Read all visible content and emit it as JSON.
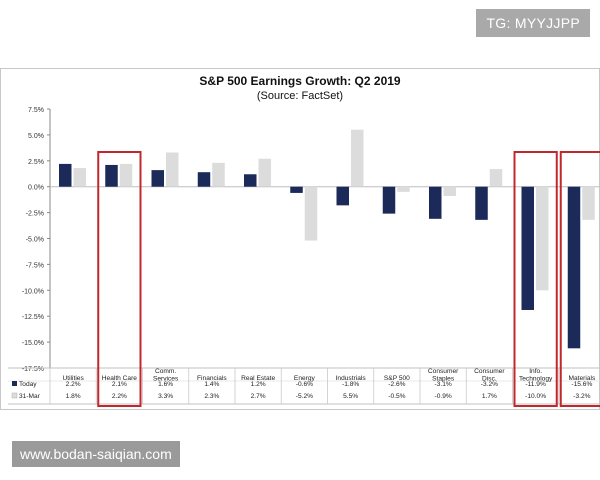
{
  "watermark_top": "TG: MYYJJPP",
  "watermark_bottom": "www.bodan-saiqian.com",
  "chart_data": {
    "type": "bar",
    "title": "S&P 500 Earnings Growth: Q2 2019",
    "subtitle": "(Source: FactSet)",
    "categories": [
      "Utilities",
      "Health Care",
      "Comm. Services",
      "Financials",
      "Real Estate",
      "Energy",
      "Industrials",
      "S&P 500",
      "Consumer Staples",
      "Consumer Disc.",
      "Info. Technology",
      "Materials"
    ],
    "category_lines": [
      [
        "Utilities"
      ],
      [
        "Health Care"
      ],
      [
        "Comm.",
        "Services"
      ],
      [
        "Financials"
      ],
      [
        "Real Estate"
      ],
      [
        "Energy"
      ],
      [
        "Industrials"
      ],
      [
        "S&P 500"
      ],
      [
        "Consumer",
        "Staples"
      ],
      [
        "Consumer",
        "Disc."
      ],
      [
        "Info.",
        "Technology"
      ],
      [
        "Materials"
      ]
    ],
    "series": [
      {
        "name": "Today",
        "color": "#1c2a5a",
        "values": [
          2.2,
          2.1,
          1.6,
          1.4,
          1.2,
          -0.6,
          -1.8,
          -2.6,
          -3.1,
          -3.2,
          -11.9,
          -15.6
        ],
        "labels": [
          "2.2%",
          "2.1%",
          "1.6%",
          "1.4%",
          "1.2%",
          "-0.6%",
          "-1.8%",
          "-2.6%",
          "-3.1%",
          "-3.2%",
          "-11.9%",
          "-15.6%"
        ]
      },
      {
        "name": "31-Mar",
        "color": "#dcdcdc",
        "values": [
          1.8,
          2.2,
          3.3,
          2.3,
          2.7,
          -5.2,
          5.5,
          -0.5,
          -0.9,
          1.7,
          -10.0,
          -3.2
        ],
        "labels": [
          "1.8%",
          "2.2%",
          "3.3%",
          "2.3%",
          "2.7%",
          "-5.2%",
          "5.5%",
          "-0.5%",
          "-0.9%",
          "1.7%",
          "-10.0%",
          "-3.2%"
        ]
      }
    ],
    "ylim": [
      -17.5,
      7.5
    ],
    "yticks": [
      7.5,
      5.0,
      2.5,
      0.0,
      -2.5,
      -5.0,
      -7.5,
      -10.0,
      -12.5,
      -15.0,
      -17.5
    ],
    "ytick_labels": [
      "7.5%",
      "5.0%",
      "2.5%",
      "0.0%",
      "-2.5%",
      "-5.0%",
      "-7.5%",
      "-10.0%",
      "-12.5%",
      "-15.0%",
      "-17.5%"
    ],
    "highlighted_categories": [
      "Health Care",
      "Info. Technology",
      "Materials"
    ],
    "highlight_color": "#c0282d",
    "legend": "data-table-left",
    "grid": false
  }
}
